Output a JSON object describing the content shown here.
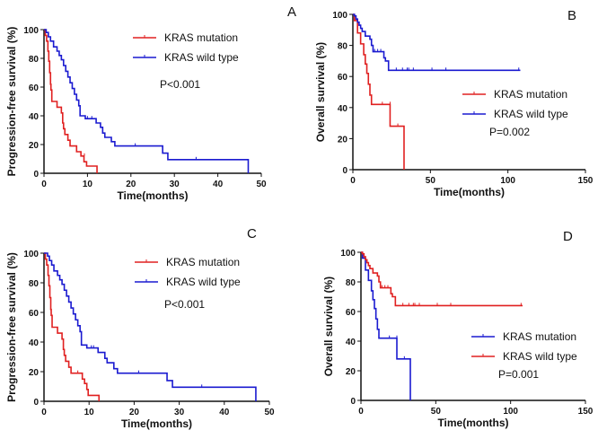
{
  "chart_data": [
    {
      "type": "line",
      "panel": "A",
      "xlabel": "Time(months)",
      "ylabel": "Progression-free survival (%)",
      "xlim": [
        0,
        50
      ],
      "ylim": [
        0,
        100
      ],
      "xticks": [
        0,
        10,
        20,
        30,
        40,
        50
      ],
      "yticks": [
        0,
        20,
        40,
        60,
        80,
        100
      ],
      "p_value": "P<0.001",
      "legend": "top-right",
      "series": [
        {
          "name": "KRAS mutation",
          "color": "#e02020",
          "steps": [
            [
              0,
              100
            ],
            [
              0.3,
              96
            ],
            [
              0.6,
              92
            ],
            [
              0.9,
              85
            ],
            [
              1.1,
              78
            ],
            [
              1.3,
              70
            ],
            [
              1.5,
              62
            ],
            [
              1.6,
              58
            ],
            [
              1.8,
              50
            ],
            [
              3,
              46
            ],
            [
              4,
              42
            ],
            [
              4.3,
              35
            ],
            [
              4.5,
              31
            ],
            [
              4.8,
              27
            ],
            [
              5.5,
              23
            ],
            [
              6,
              19
            ],
            [
              7.5,
              15
            ],
            [
              8.5,
              12
            ],
            [
              9.2,
              8
            ],
            [
              9.8,
              5
            ],
            [
              12.2,
              0
            ]
          ],
          "censored": [
            [
              9.3,
              12
            ]
          ]
        },
        {
          "name": "KRAS wild type",
          "color": "#1a1ad0",
          "steps": [
            [
              0,
              100
            ],
            [
              0.5,
              98
            ],
            [
              1,
              95
            ],
            [
              1.5,
              92
            ],
            [
              2.2,
              88
            ],
            [
              3,
              85
            ],
            [
              3.5,
              82
            ],
            [
              4,
              79
            ],
            [
              4.5,
              75
            ],
            [
              5,
              71
            ],
            [
              5.5,
              67
            ],
            [
              6,
              63
            ],
            [
              6.5,
              59
            ],
            [
              7,
              55
            ],
            [
              7.5,
              51
            ],
            [
              8,
              47
            ],
            [
              8.3,
              40
            ],
            [
              9.5,
              38
            ],
            [
              12,
              35
            ],
            [
              13,
              32
            ],
            [
              13.5,
              28
            ],
            [
              14,
              25
            ],
            [
              15.5,
              22
            ],
            [
              16.3,
              19
            ],
            [
              27.3,
              14
            ],
            [
              28.5,
              9.5
            ],
            [
              47,
              0
            ]
          ],
          "censored": [
            [
              10,
              38
            ],
            [
              11,
              38
            ],
            [
              21,
              19
            ],
            [
              35,
              9.5
            ]
          ]
        }
      ]
    },
    {
      "type": "line",
      "panel": "B",
      "xlabel": "Time(months)",
      "ylabel": "Overall survival (%)",
      "xlim": [
        0,
        150
      ],
      "ylim": [
        0,
        100
      ],
      "xticks": [
        0,
        50,
        100,
        150
      ],
      "yticks": [
        0,
        20,
        40,
        60,
        80,
        100
      ],
      "p_value": "P=0.002",
      "legend": "center-right",
      "series": [
        {
          "name": "KRAS mutation",
          "color": "#e02020",
          "steps": [
            [
              0,
              100
            ],
            [
              1,
              96
            ],
            [
              3,
              88
            ],
            [
              5,
              81
            ],
            [
              7,
              74
            ],
            [
              8,
              68
            ],
            [
              9,
              62
            ],
            [
              10,
              55
            ],
            [
              11,
              48
            ],
            [
              12,
              42
            ],
            [
              24,
              28
            ],
            [
              33,
              0
            ]
          ],
          "censored": [
            [
              19,
              42
            ],
            [
              24,
              42
            ],
            [
              29,
              28
            ]
          ]
        },
        {
          "name": "KRAS wild type",
          "color": "#1a1ad0",
          "steps": [
            [
              0,
              100
            ],
            [
              1,
              99
            ],
            [
              2,
              97
            ],
            [
              3,
              95
            ],
            [
              4,
              93
            ],
            [
              5,
              91
            ],
            [
              6,
              89
            ],
            [
              8,
              86
            ],
            [
              11,
              84
            ],
            [
              12,
              80
            ],
            [
              13,
              76
            ],
            [
              20,
              72
            ],
            [
              21,
              70
            ],
            [
              23,
              64
            ],
            [
              108,
              64
            ]
          ],
          "censored": [
            [
              14,
              76
            ],
            [
              16,
              76
            ],
            [
              18,
              76
            ],
            [
              28,
              64
            ],
            [
              32,
              64
            ],
            [
              35,
              64
            ],
            [
              36,
              64
            ],
            [
              39,
              64
            ],
            [
              51,
              64
            ],
            [
              60,
              64
            ],
            [
              107,
              64
            ]
          ]
        }
      ]
    },
    {
      "type": "line",
      "panel": "C",
      "xlabel": "Time(months)",
      "ylabel": "Progression-free survival (%)",
      "xlim": [
        0,
        50
      ],
      "ylim": [
        0,
        100
      ],
      "xticks": [
        0,
        10,
        20,
        30,
        40,
        50
      ],
      "yticks": [
        0,
        20,
        40,
        60,
        80,
        100
      ],
      "p_value": "P<0.001",
      "legend": "top-right",
      "series": [
        {
          "name": "KRAS mutation",
          "color": "#e02020",
          "steps": [
            [
              0,
              100
            ],
            [
              0.3,
              96
            ],
            [
              0.6,
              92
            ],
            [
              0.9,
              85
            ],
            [
              1.1,
              78
            ],
            [
              1.3,
              70
            ],
            [
              1.5,
              62
            ],
            [
              1.6,
              58
            ],
            [
              1.8,
              50
            ],
            [
              3,
              46
            ],
            [
              4,
              42
            ],
            [
              4.3,
              35
            ],
            [
              4.5,
              31
            ],
            [
              4.8,
              27
            ],
            [
              5.5,
              23
            ],
            [
              6,
              19
            ],
            [
              8.5,
              15
            ],
            [
              9,
              12
            ],
            [
              9.5,
              8
            ],
            [
              9.8,
              4
            ],
            [
              12.2,
              0
            ]
          ],
          "censored": [
            [
              7.5,
              19
            ]
          ]
        },
        {
          "name": "KRAS wild type",
          "color": "#1a1ad0",
          "steps": [
            [
              0,
              100
            ],
            [
              0.8,
              98
            ],
            [
              1.2,
              95
            ],
            [
              1.7,
              92
            ],
            [
              2.2,
              88
            ],
            [
              3,
              85
            ],
            [
              3.5,
              82
            ],
            [
              4,
              79
            ],
            [
              4.5,
              75
            ],
            [
              5,
              71
            ],
            [
              5.5,
              67
            ],
            [
              6,
              63
            ],
            [
              6.5,
              59
            ],
            [
              7,
              55
            ],
            [
              7.5,
              51
            ],
            [
              8,
              47
            ],
            [
              8.3,
              38
            ],
            [
              9.5,
              36
            ],
            [
              12,
              33
            ],
            [
              13.5,
              29
            ],
            [
              14,
              26
            ],
            [
              15.5,
              22
            ],
            [
              16.3,
              19
            ],
            [
              27.3,
              14
            ],
            [
              28.5,
              9.5
            ],
            [
              47,
              0
            ]
          ],
          "censored": [
            [
              10.5,
              36
            ],
            [
              11,
              36
            ],
            [
              21,
              19
            ],
            [
              35,
              9.5
            ]
          ]
        }
      ]
    },
    {
      "type": "line",
      "panel": "D",
      "xlabel": "Time(months)",
      "ylabel": "Overall survival (%)",
      "xlim": [
        0,
        150
      ],
      "ylim": [
        0,
        100
      ],
      "xticks": [
        0,
        50,
        100,
        150
      ],
      "yticks": [
        0,
        20,
        40,
        60,
        80,
        100
      ],
      "p_value": "P=0.001",
      "legend": "center-right",
      "series": [
        {
          "name": "KRAS mutation",
          "color": "#1a1ad0",
          "steps": [
            [
              0,
              100
            ],
            [
              1,
              96
            ],
            [
              3,
              88
            ],
            [
              5,
              81
            ],
            [
              7,
              74
            ],
            [
              8,
              68
            ],
            [
              9,
              62
            ],
            [
              10,
              55
            ],
            [
              11,
              48
            ],
            [
              12,
              42
            ],
            [
              24,
              28
            ],
            [
              33,
              0
            ]
          ],
          "censored": [
            [
              19,
              42
            ],
            [
              24,
              42
            ],
            [
              29,
              28
            ]
          ]
        },
        {
          "name": "KRAS wild type",
          "color": "#e02020",
          "steps": [
            [
              0,
              100
            ],
            [
              1,
              99
            ],
            [
              2,
              97
            ],
            [
              3,
              95
            ],
            [
              4,
              93
            ],
            [
              5,
              91
            ],
            [
              6,
              89
            ],
            [
              8,
              86
            ],
            [
              11,
              84
            ],
            [
              12,
              80
            ],
            [
              13,
              76
            ],
            [
              20,
              72
            ],
            [
              21,
              70
            ],
            [
              23,
              64
            ],
            [
              108,
              64
            ]
          ],
          "censored": [
            [
              14,
              76
            ],
            [
              16,
              76
            ],
            [
              18,
              76
            ],
            [
              28,
              64
            ],
            [
              32,
              64
            ],
            [
              35,
              64
            ],
            [
              36,
              64
            ],
            [
              39,
              64
            ],
            [
              51,
              64
            ],
            [
              60,
              64
            ],
            [
              107,
              64
            ]
          ]
        }
      ]
    }
  ]
}
